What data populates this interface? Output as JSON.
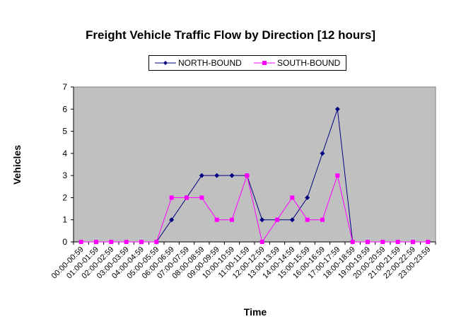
{
  "chart_data": {
    "type": "line",
    "title": "Freight Vehicle Traffic Flow by Direction [12 hours]",
    "xlabel": "Time",
    "ylabel": "Vehicles",
    "ylim": [
      0,
      7
    ],
    "yticks": [
      0,
      1,
      2,
      3,
      4,
      5,
      6,
      7
    ],
    "grid": false,
    "legend_position": "top",
    "plot_background": "#c0c0c0",
    "categories": [
      "00:00-00:59",
      "01:00-01:59",
      "02:00-02:59",
      "03:00-03:59",
      "04:00-04:59",
      "05:00-05:59",
      "06:00-06:59",
      "07:00-07:59",
      "08:00-08:59",
      "09:00-09:59",
      "10:00-10:59",
      "11:00-11:59",
      "12:00-12:59",
      "13:00-13:59",
      "14:00-14:59",
      "15:00-15:59",
      "16:00-16:59",
      "17:00-17:59",
      "18:00-18:59",
      "19:00-19:59",
      "20:00-20:59",
      "21:00-21:59",
      "22:00-22:59",
      "23:00-23:59"
    ],
    "series": [
      {
        "name": "NORTH-BOUND",
        "color": "#000080",
        "marker": "diamond",
        "values": [
          null,
          null,
          null,
          null,
          null,
          0,
          1,
          2,
          3,
          3,
          3,
          3,
          1,
          1,
          1,
          2,
          4,
          6,
          0,
          null,
          null,
          null,
          null,
          null
        ]
      },
      {
        "name": "SOUTH-BOUND",
        "color": "#ff00ff",
        "marker": "square",
        "values": [
          0,
          0,
          0,
          0,
          0,
          0,
          2,
          2,
          2,
          1,
          1,
          3,
          0,
          1,
          2,
          1,
          1,
          3,
          0,
          0,
          0,
          0,
          0,
          0
        ]
      }
    ]
  }
}
